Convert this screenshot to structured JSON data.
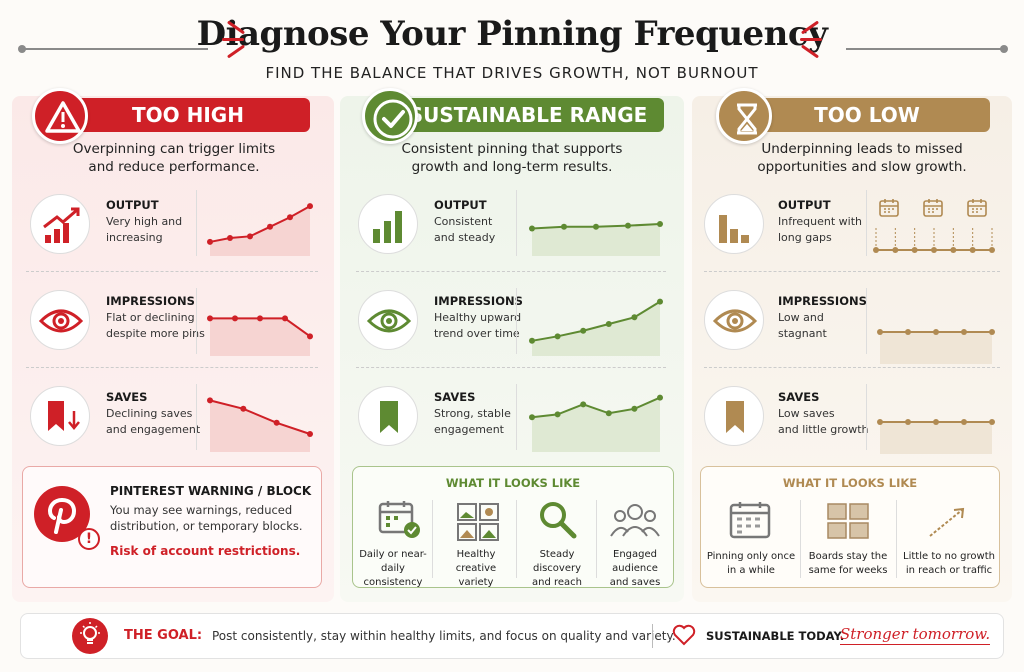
{
  "header": {
    "title": "Diagnose Your Pinning Frequency",
    "subtitle": "FIND THE BALANCE THAT DRIVES GROWTH, NOT BURNOUT"
  },
  "colors": {
    "red": "#cf2027",
    "green": "#5e8a32",
    "gold": "#b08a52"
  },
  "columns": [
    {
      "heading": "TOO HIGH",
      "icon": "warning-icon",
      "desc_l1": "Overpinning can trigger limits",
      "desc_l2": "and reduce performance.",
      "metrics": [
        {
          "label": "OUTPUT",
          "l1": "Very high and",
          "l2": "increasing",
          "icon": "rising-bars-icon",
          "trend": [
            0.82,
            0.75,
            0.72,
            0.55,
            0.38,
            0.18
          ]
        },
        {
          "label": "IMPRESSIONS",
          "l1": "Flat or declining",
          "l2": "despite more pins",
          "icon": "eye-icon",
          "trend": [
            0.4,
            0.4,
            0.4,
            0.4,
            0.72
          ]
        },
        {
          "label": "SAVES",
          "l1": "Declining saves",
          "l2": "and engagement",
          "icon": "bookmark-down-icon",
          "trend": [
            0.15,
            0.3,
            0.55,
            0.75
          ]
        }
      ],
      "box": {
        "title": "PINTEREST WARNING / BLOCK",
        "l1": "You may see warnings, reduced",
        "l2": "distribution, or temporary blocks.",
        "risk": "Risk of account restrictions."
      }
    },
    {
      "heading": "SUSTAINABLE RANGE",
      "icon": "checkmark-icon",
      "desc_l1": "Consistent pinning that supports",
      "desc_l2": "growth and long-term results.",
      "metrics": [
        {
          "label": "OUTPUT",
          "l1": "Consistent",
          "l2": "and steady",
          "icon": "bar-chart-icon",
          "trend": [
            0.58,
            0.55,
            0.55,
            0.53,
            0.5
          ]
        },
        {
          "label": "IMPRESSIONS",
          "l1": "Healthy upward",
          "l2": "trend over time",
          "icon": "eye-icon",
          "trend": [
            0.8,
            0.72,
            0.62,
            0.5,
            0.38,
            0.1
          ]
        },
        {
          "label": "SAVES",
          "l1": "Strong, stable",
          "l2": "engagement",
          "icon": "bookmark-icon",
          "trend": [
            0.45,
            0.4,
            0.22,
            0.38,
            0.3,
            0.1
          ]
        }
      ],
      "box": {
        "title": "WHAT IT LOOKS LIKE",
        "items": [
          {
            "l1": "Daily or near-",
            "l2": "daily consistency",
            "icon": "calendar-check-icon"
          },
          {
            "l1": "Healthy creative",
            "l2": "variety",
            "icon": "image-grid-icon"
          },
          {
            "l1": "Steady discovery",
            "l2": "and reach",
            "icon": "magnifier-icon"
          },
          {
            "l1": "Engaged audience",
            "l2": "and saves",
            "icon": "people-icon"
          }
        ]
      }
    },
    {
      "heading": "TOO LOW",
      "icon": "hourglass-icon",
      "desc_l1": "Underpinning leads to missed",
      "desc_l2": "opportunities and slow growth.",
      "metrics": [
        {
          "label": "OUTPUT",
          "l1": "Infrequent with",
          "l2": "long gaps",
          "icon": "falling-bars-icon",
          "trend": [
            0.5,
            0.5,
            0.5,
            0.5,
            0.5,
            0.5,
            0.5
          ]
        },
        {
          "label": "IMPRESSIONS",
          "l1": "Low and",
          "l2": "stagnant",
          "icon": "eye-icon",
          "trend": [
            0.5,
            0.5,
            0.5,
            0.5,
            0.5
          ]
        },
        {
          "label": "SAVES",
          "l1": "Low saves",
          "l2": "and little growth",
          "icon": "bookmark-icon",
          "trend": [
            0.5,
            0.5,
            0.5,
            0.5,
            0.5
          ]
        }
      ],
      "box": {
        "title": "WHAT IT LOOKS LIKE",
        "items": [
          {
            "l1": "Pinning only once",
            "l2": "in a while",
            "icon": "calendar-icon"
          },
          {
            "l1": "Boards stay the",
            "l2": "same for weeks",
            "icon": "board-grid-icon"
          },
          {
            "l1": "Little to no growth",
            "l2": "in reach or traffic",
            "icon": "flat-arrow-icon"
          }
        ]
      }
    }
  ],
  "goal": {
    "label": "THE GOAL:",
    "text": "Post consistently, stay within healthy limits, and focus on quality and variety.",
    "tagline": "SUSTAINABLE TODAY.",
    "script": "Stronger tomorrow."
  }
}
